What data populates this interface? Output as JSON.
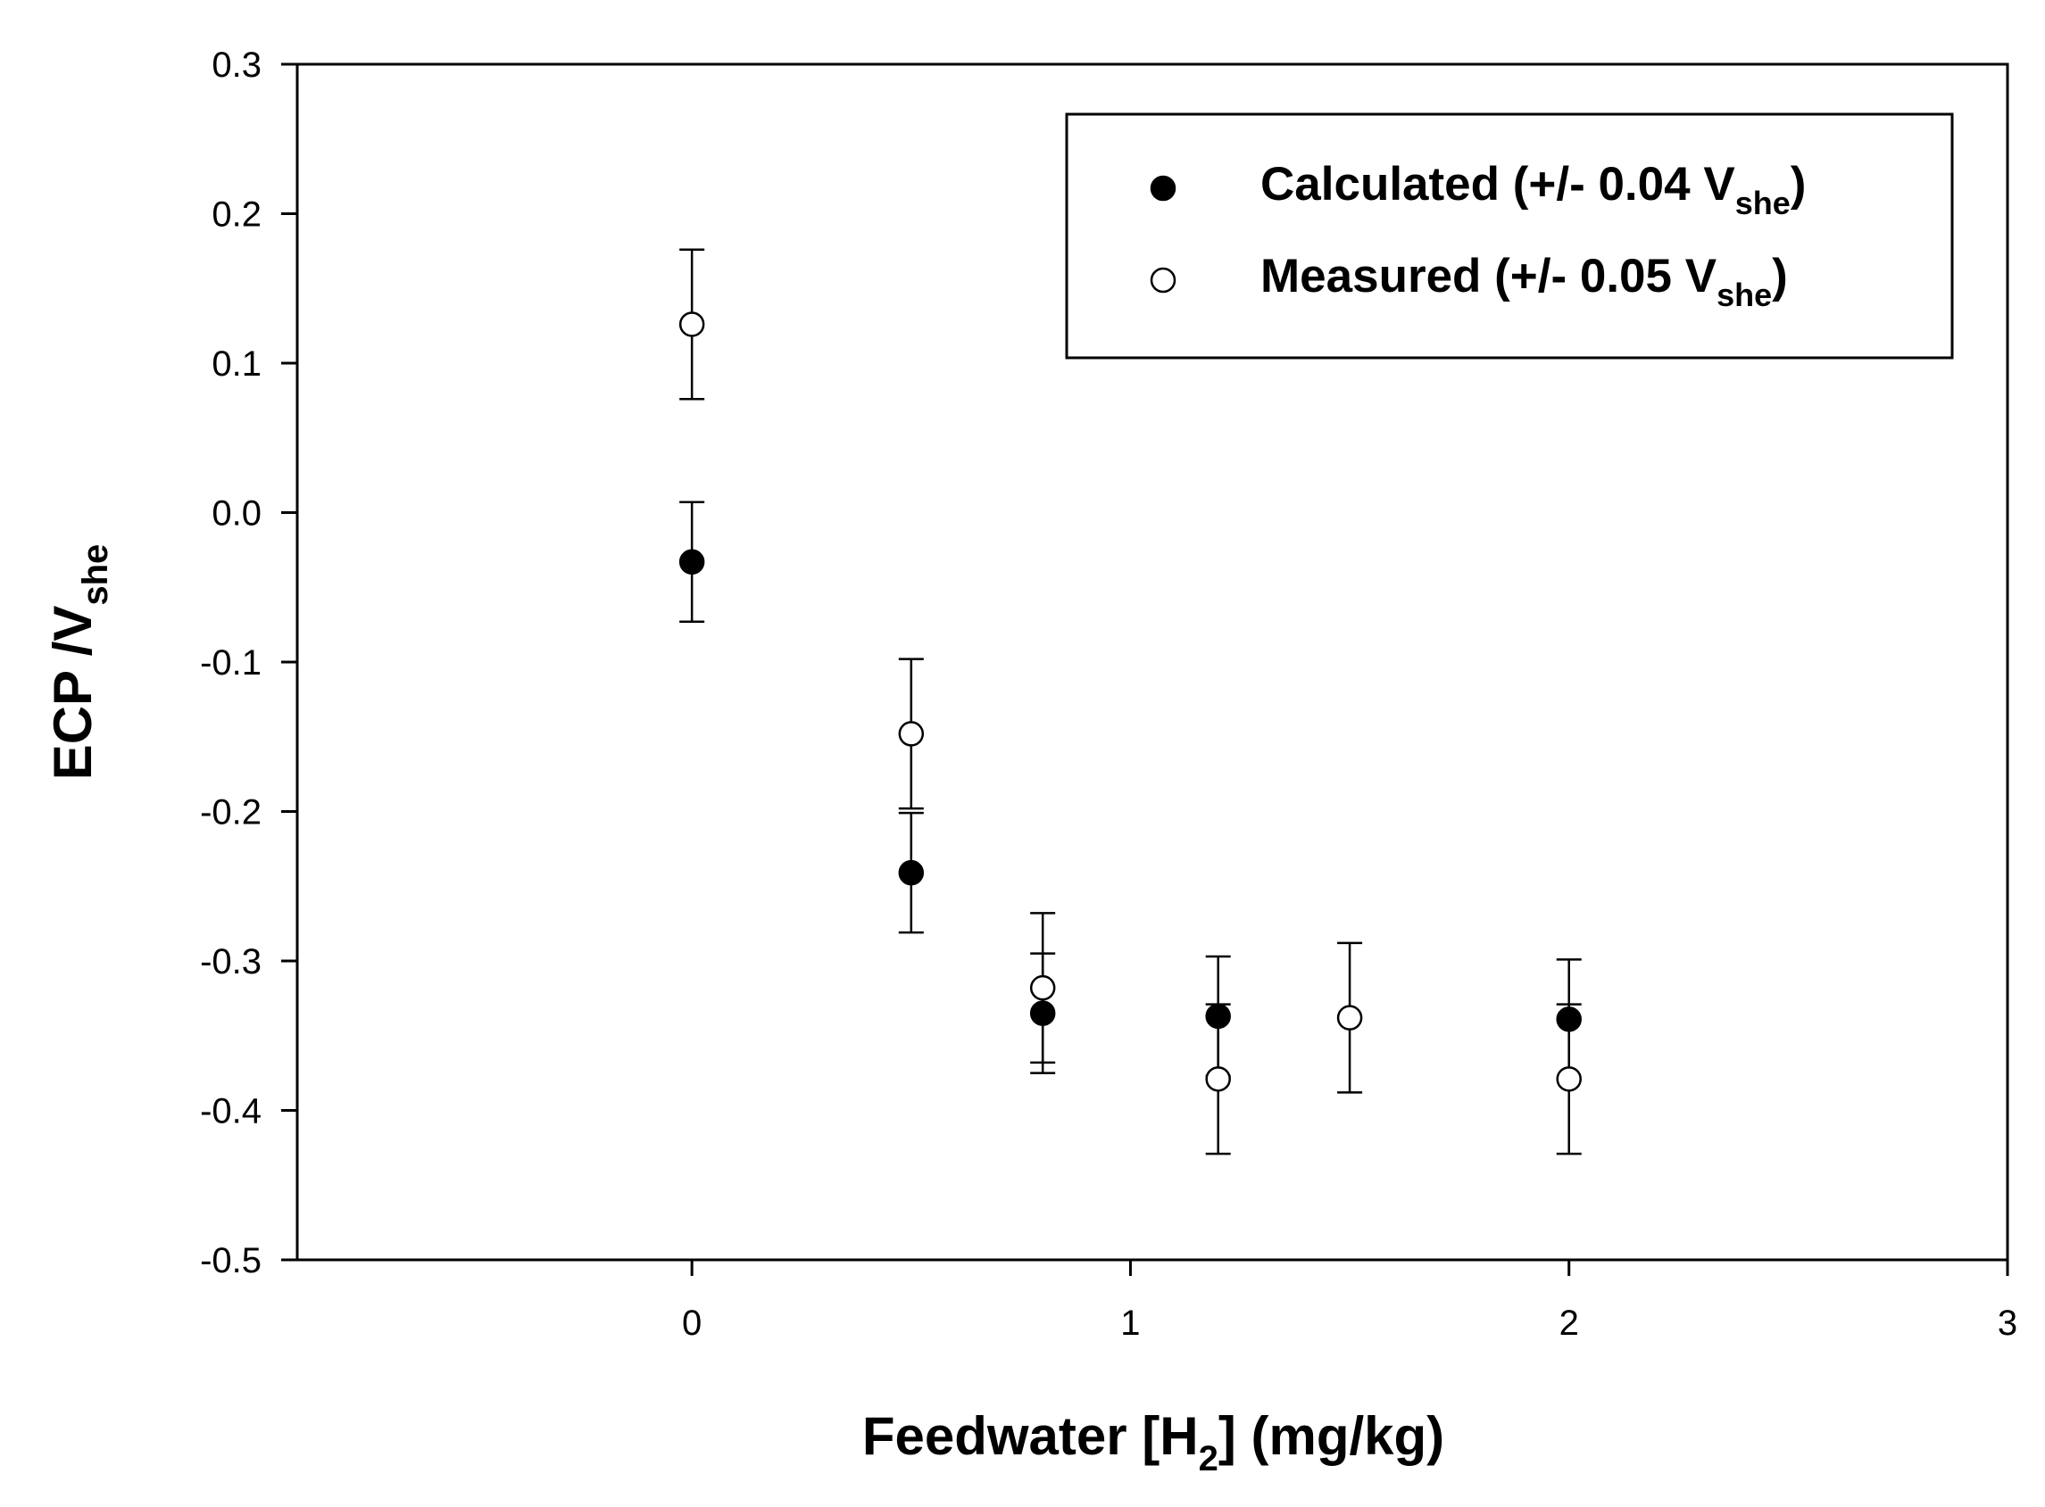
{
  "chart_data": {
    "type": "scatter",
    "title": "",
    "xlabel": {
      "main": "Feedwater [H",
      "sub": "2",
      "rest": "]  (mg/kg)"
    },
    "ylabel": {
      "main": "ECP /V",
      "sub": "she"
    },
    "xlim": [
      -0.9,
      3
    ],
    "ylim": [
      -0.5,
      0.3
    ],
    "xticks": [
      0,
      1,
      2,
      3
    ],
    "xtick_labels": [
      "0",
      "1",
      "2",
      "3"
    ],
    "yticks": [
      0.3,
      0.2,
      0.1,
      0.0,
      -0.1,
      -0.2,
      -0.3,
      -0.4,
      -0.5
    ],
    "ytick_labels": [
      "0.3",
      "0.2",
      "0.1",
      "0.0",
      "-0.1",
      "-0.2",
      "-0.3",
      "-0.4",
      "-0.5"
    ],
    "grid": false,
    "legend_position": "top-right",
    "series": [
      {
        "name": "Calculated",
        "legend": {
          "main": "Calculated (+/- 0.04 V",
          "sub": "she",
          "end": ")"
        },
        "marker": "filled-circle",
        "error": 0.04,
        "x": [
          0,
          0.5,
          0.8,
          1.2,
          2.0
        ],
        "y": [
          -0.033,
          -0.241,
          -0.335,
          -0.337,
          -0.339
        ]
      },
      {
        "name": "Measured",
        "legend": {
          "main": "Measured (+/- 0.05 V",
          "sub": "she",
          "end": ")"
        },
        "marker": "open-circle",
        "error": 0.05,
        "x": [
          0,
          0.5,
          0.8,
          1.2,
          1.5,
          2.0
        ],
        "y": [
          0.126,
          -0.148,
          -0.318,
          -0.379,
          -0.338,
          -0.379
        ]
      }
    ]
  }
}
